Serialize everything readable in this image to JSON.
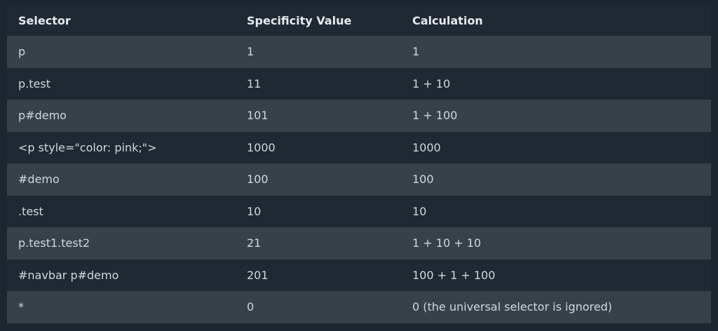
{
  "table": {
    "headers": [
      "Selector",
      "Specificity Value",
      "Calculation"
    ],
    "rows": [
      [
        "p",
        "1",
        "1"
      ],
      [
        "p.test",
        "11",
        "1 + 10"
      ],
      [
        "p#demo",
        "101",
        "1 + 100"
      ],
      [
        "<p style=\"color: pink;\">",
        "1000",
        "1000"
      ],
      [
        "#demo",
        "100",
        "100"
      ],
      [
        ".test",
        "10",
        "10"
      ],
      [
        "p.test1.test2",
        "21",
        "1 + 10 + 10"
      ],
      [
        "#navbar p#demo",
        "201",
        "100 + 1 + 100"
      ],
      [
        "*",
        "0",
        "0 (the universal selector is ignored)"
      ]
    ]
  },
  "colors": {
    "background": "#1d2630",
    "row_light": "#374149",
    "row_dark": "#1f2933",
    "text": "#d2d7dd",
    "header_text": "#e6eaee"
  }
}
